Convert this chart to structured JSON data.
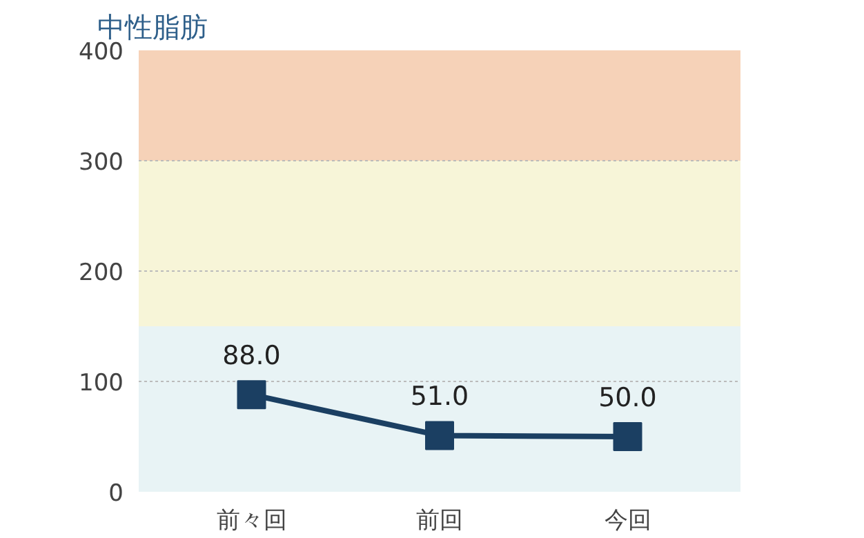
{
  "chart_data": {
    "type": "line",
    "title": "中性脂肪",
    "categories": [
      "前々回",
      "前回",
      "今回"
    ],
    "series": [
      {
        "color": "#1b3f62",
        "values": [
          88.0,
          51.0,
          50.0
        ],
        "value_labels": [
          "88.0",
          "51.0",
          "50.0"
        ]
      }
    ],
    "ylim": [
      0,
      400
    ],
    "yticks": [
      0,
      100,
      200,
      300,
      400
    ],
    "grid": "y",
    "marker": "square",
    "line_style": "solid",
    "bands": [
      {
        "axis": "y",
        "from": 0,
        "to": 150,
        "color": "#e8f3f5"
      },
      {
        "axis": "y",
        "from": 150,
        "to": 300,
        "color": "#f7f5d8"
      },
      {
        "axis": "y",
        "from": 300,
        "to": 400,
        "color": "#f6d2b8"
      }
    ]
  }
}
